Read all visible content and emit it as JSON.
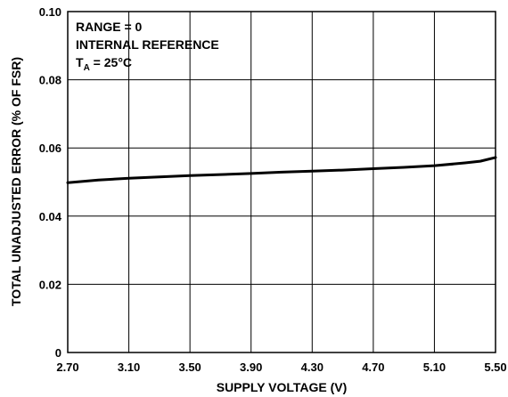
{
  "chart_data": {
    "type": "line",
    "xlabel": "SUPPLY VOLTAGE (V)",
    "ylabel": "TOTAL UNADJUSTED ERROR (% OF FSR)",
    "xlim": [
      2.7,
      5.5
    ],
    "ylim": [
      0,
      0.1
    ],
    "x_ticks": [
      "2.70",
      "3.10",
      "3.50",
      "3.90",
      "4.30",
      "4.70",
      "5.10",
      "5.50"
    ],
    "y_ticks": [
      "0",
      "0.02",
      "0.04",
      "0.06",
      "0.08",
      "0.10"
    ],
    "grid": true,
    "annotations": {
      "range": "RANGE = 0",
      "reference": "INTERNAL REFERENCE",
      "temp_main": "T",
      "temp_sub": "A",
      "temp_value": " = 25°C"
    },
    "series": [
      {
        "x": [
          2.7,
          2.9,
          3.1,
          3.3,
          3.5,
          3.7,
          3.9,
          4.1,
          4.3,
          4.5,
          4.7,
          4.9,
          5.1,
          5.3,
          5.4,
          5.5
        ],
        "y": [
          0.0498,
          0.0506,
          0.0511,
          0.0515,
          0.0519,
          0.0522,
          0.0525,
          0.0529,
          0.0532,
          0.0535,
          0.0539,
          0.0543,
          0.0548,
          0.0556,
          0.0561,
          0.0572
        ]
      }
    ]
  },
  "colors": {
    "line": "#000000",
    "grid": "#000000",
    "background": "#ffffff"
  }
}
